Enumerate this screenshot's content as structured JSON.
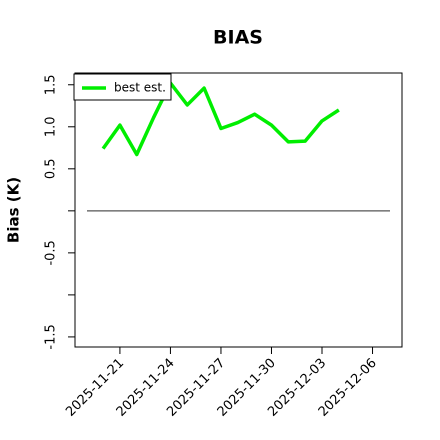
{
  "chart_data": {
    "type": "line",
    "title": "BIAS",
    "y_label": "Bias (K)",
    "x": [
      "2025-11-20",
      "2025-11-21",
      "2025-11-22",
      "2025-11-23",
      "2025-11-24",
      "2025-11-25",
      "2025-11-26",
      "2025-11-27",
      "2025-11-28",
      "2025-11-29",
      "2025-11-30",
      "2025-12-01",
      "2025-12-02",
      "2025-12-03",
      "2025-12-04"
    ],
    "series": [
      {
        "name": "best est.",
        "color": "#00ee00",
        "values": [
          0.74,
          1.02,
          0.67,
          1.11,
          1.52,
          1.26,
          1.46,
          0.98,
          1.05,
          1.15,
          1.02,
          0.82,
          0.83,
          1.07,
          1.2
        ]
      }
    ],
    "xlim": [
      "2025-11-18T08:00",
      "2025-12-07T18:00"
    ],
    "xticks": [
      "2025-11-21",
      "2025-11-24",
      "2025-11-27",
      "2025-11-30",
      "2025-12-03",
      "2025-12-06"
    ],
    "ylim": [
      -1.62,
      1.64
    ],
    "yticks": [
      -1.5,
      -0.5,
      0.5,
      {
        "value": 1,
        "label": "1.0"
      },
      1.5
    ],
    "yticks_unlabeled": [
      -1,
      0
    ],
    "hline": 0,
    "legend": "upper left"
  }
}
